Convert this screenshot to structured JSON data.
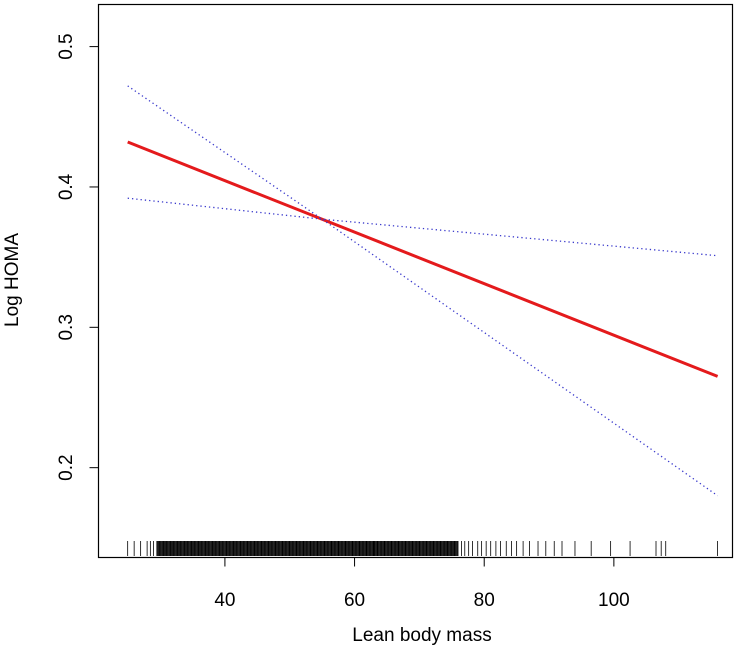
{
  "chart_data": {
    "type": "line",
    "xlabel": "Lean body mass",
    "ylabel": "Log HOMA",
    "xlim": [
      20.5,
      118.3
    ],
    "ylim": [
      0.136,
      0.53
    ],
    "x_ticks": [
      40,
      60,
      80,
      100
    ],
    "y_ticks": [
      0.2,
      0.3,
      0.4,
      0.5
    ],
    "x_tick_labels": [
      "40",
      "60",
      "80",
      "100"
    ],
    "y_tick_labels": [
      "0.2",
      "0.3",
      "0.4",
      "0.5"
    ],
    "grid": false,
    "series": [
      {
        "role": "fit",
        "color": "#e41a1c",
        "style": "solid",
        "x": [
          25,
          116
        ],
        "y": [
          0.432,
          0.265
        ]
      },
      {
        "role": "ci-upper",
        "color": "#3a3acc",
        "style": "dotted",
        "x": [
          25,
          55,
          116
        ],
        "y": [
          0.472,
          0.377,
          0.18
        ]
      },
      {
        "role": "ci-lower",
        "color": "#3a3acc",
        "style": "dotted",
        "x": [
          25,
          55,
          116
        ],
        "y": [
          0.392,
          0.377,
          0.351
        ]
      }
    ],
    "rug": {
      "dense_ranges": [
        [
          29.5,
          63
        ],
        [
          63,
          76
        ]
      ],
      "individual": [
        25,
        26,
        27,
        28,
        28.5,
        29,
        76.5,
        77,
        77.6,
        78.2,
        79,
        79.6,
        80.3,
        81,
        81.8,
        82.5,
        83.4,
        84.2,
        85,
        86,
        87,
        88.3,
        89.5,
        90.8,
        92,
        94,
        96.5,
        99.5,
        102.5,
        106.5,
        107.3,
        108,
        116
      ]
    }
  }
}
